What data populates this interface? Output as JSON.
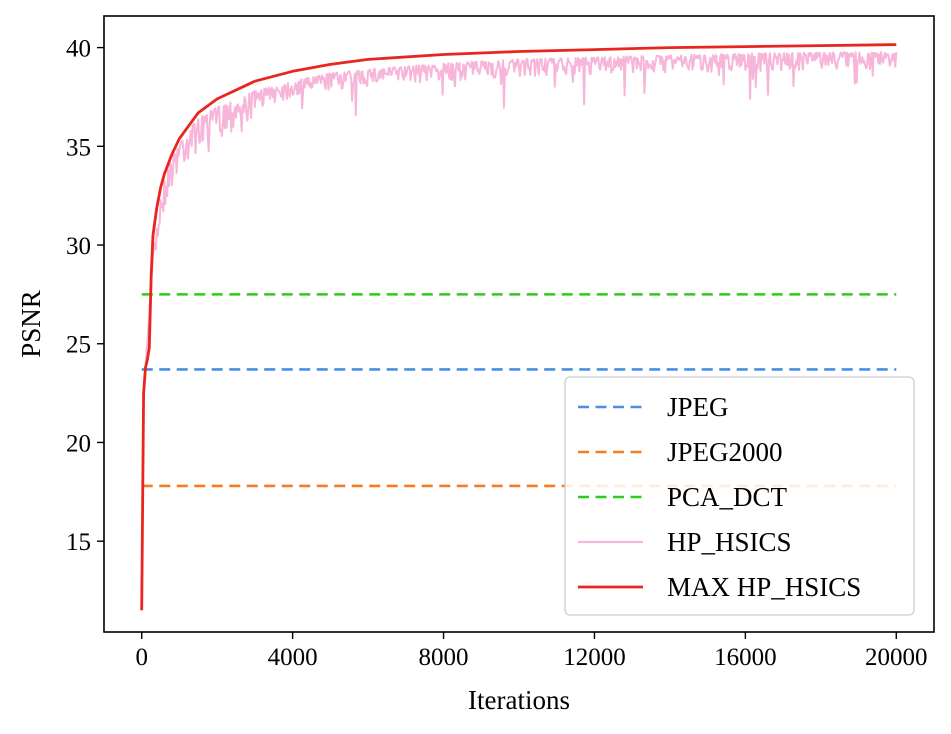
{
  "chart_data": {
    "type": "line",
    "title": "",
    "xlabel": "Iterations",
    "ylabel": "PSNR",
    "xlim": [
      -1000,
      21000
    ],
    "ylim": [
      10.4,
      41.6
    ],
    "xticks": [
      0,
      4000,
      8000,
      12000,
      16000,
      20000
    ],
    "xtick_labels": [
      "0",
      "4000",
      "8000",
      "12000",
      "16000",
      "20000"
    ],
    "yticks": [
      15,
      20,
      25,
      30,
      35,
      40
    ],
    "ytick_labels": [
      "15",
      "20",
      "25",
      "30",
      "35",
      "40"
    ],
    "grid": false,
    "legend_position": "lower-right",
    "series": [
      {
        "name": "JPEG",
        "style": "dashed",
        "color": "#4a90e2",
        "x": [
          0,
          20000
        ],
        "y": [
          23.7,
          23.7
        ]
      },
      {
        "name": "JPEG2000",
        "style": "dashed",
        "color": "#f57c20",
        "x": [
          0,
          20000
        ],
        "y": [
          17.8,
          17.8
        ]
      },
      {
        "name": "PCA_DCT",
        "style": "dashed",
        "color": "#2ecc1a",
        "x": [
          0,
          20000
        ],
        "y": [
          27.5,
          27.5
        ]
      },
      {
        "name": "HP_HSICS",
        "style": "solid-noisy",
        "color": "#f7b6d9",
        "x": [
          0,
          50,
          100,
          200,
          300,
          500,
          700,
          1000,
          1500,
          2000,
          3000,
          4000,
          5000,
          6000,
          8000,
          10000,
          12000,
          14000,
          16000,
          18000,
          20000
        ],
        "y": [
          11.5,
          22.5,
          23.8,
          26.5,
          29.5,
          32.5,
          34.0,
          35.3,
          36.4,
          37.0,
          37.8,
          38.3,
          38.7,
          38.9,
          39.2,
          39.4,
          39.5,
          39.6,
          39.7,
          39.75,
          39.8
        ]
      },
      {
        "name": "MAX HP_HSICS",
        "style": "solid",
        "color": "#e8261e",
        "x": [
          0,
          50,
          100,
          150,
          200,
          250,
          300,
          400,
          500,
          600,
          800,
          1000,
          1500,
          2000,
          3000,
          4000,
          5000,
          6000,
          8000,
          10000,
          12000,
          14000,
          16000,
          18000,
          20000
        ],
        "y": [
          11.5,
          22.5,
          23.8,
          24.2,
          24.8,
          28.5,
          30.5,
          31.9,
          32.9,
          33.6,
          34.6,
          35.4,
          36.7,
          37.4,
          38.3,
          38.8,
          39.15,
          39.4,
          39.65,
          39.8,
          39.9,
          40.0,
          40.05,
          40.1,
          40.15
        ]
      }
    ]
  }
}
